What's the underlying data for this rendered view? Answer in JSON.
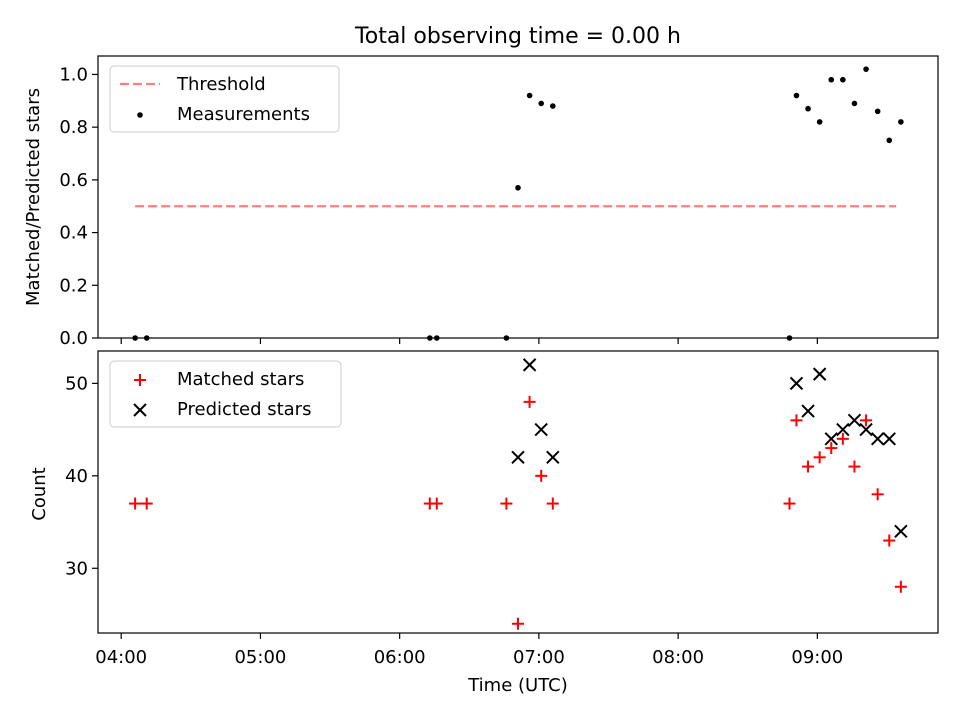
{
  "figure": {
    "title": "Total observing time = 0.00 h"
  },
  "colors": {
    "threshold": "#ff7f7f",
    "measurements": "#000000",
    "matched": "#ff0000",
    "predicted": "#000000"
  },
  "chart_data": [
    {
      "type": "scatter",
      "title": "Total observing time = 0.00 h",
      "xlabel": "",
      "ylabel": "Matched/Predicted stars",
      "xlim": [
        "03:50",
        "09:52"
      ],
      "ylim": [
        0,
        1.07
      ],
      "yticks": [
        0.0,
        0.2,
        0.4,
        0.6,
        0.8,
        1.0
      ],
      "ytick_labels": [
        "0.0",
        "0.2",
        "0.4",
        "0.6",
        "0.8",
        "1.0"
      ],
      "xticks": [
        "04:00",
        "05:00",
        "06:00",
        "07:00",
        "08:00",
        "09:00"
      ],
      "xtick_labels_visible": false,
      "grid": false,
      "legend": {
        "placement": "upper-left",
        "entries": [
          "Threshold",
          "Measurements"
        ]
      },
      "series": [
        {
          "name": "Threshold",
          "style": "dashed-line",
          "points": [
            {
              "x": "04:06",
              "y": 0.5
            },
            {
              "x": "09:34",
              "y": 0.5
            }
          ]
        },
        {
          "name": "Measurements",
          "style": "dot",
          "points": [
            {
              "x": "04:06",
              "y": 0.0
            },
            {
              "x": "04:11",
              "y": 0.0
            },
            {
              "x": "06:13",
              "y": 0.0
            },
            {
              "x": "06:16",
              "y": 0.0
            },
            {
              "x": "06:46",
              "y": 0.0
            },
            {
              "x": "06:51",
              "y": 0.57
            },
            {
              "x": "06:56",
              "y": 0.92
            },
            {
              "x": "07:01",
              "y": 0.89
            },
            {
              "x": "07:06",
              "y": 0.88
            },
            {
              "x": "08:48",
              "y": 0.0
            },
            {
              "x": "08:51",
              "y": 0.92
            },
            {
              "x": "08:56",
              "y": 0.87
            },
            {
              "x": "09:01",
              "y": 0.82
            },
            {
              "x": "09:06",
              "y": 0.98
            },
            {
              "x": "09:11",
              "y": 0.98
            },
            {
              "x": "09:16",
              "y": 0.89
            },
            {
              "x": "09:21",
              "y": 1.02
            },
            {
              "x": "09:26",
              "y": 0.86
            },
            {
              "x": "09:31",
              "y": 0.75
            },
            {
              "x": "09:36",
              "y": 0.82
            }
          ]
        }
      ]
    },
    {
      "type": "scatter",
      "title": "",
      "xlabel": "Time (UTC)",
      "ylabel": "Count",
      "xlim": [
        "03:50",
        "09:52"
      ],
      "ylim": [
        23,
        53.5
      ],
      "yticks": [
        30,
        40,
        50
      ],
      "ytick_labels": [
        "30",
        "40",
        "50"
      ],
      "xticks": [
        "04:00",
        "05:00",
        "06:00",
        "07:00",
        "08:00",
        "09:00"
      ],
      "xtick_labels": [
        "04:00",
        "05:00",
        "06:00",
        "07:00",
        "08:00",
        "09:00"
      ],
      "grid": false,
      "legend": {
        "placement": "upper-left",
        "entries": [
          "Matched stars",
          "Predicted stars"
        ]
      },
      "series": [
        {
          "name": "Matched stars",
          "style": "plus",
          "points": [
            {
              "x": "04:06",
              "y": 37
            },
            {
              "x": "04:11",
              "y": 37
            },
            {
              "x": "06:13",
              "y": 37
            },
            {
              "x": "06:16",
              "y": 37
            },
            {
              "x": "06:46",
              "y": 37
            },
            {
              "x": "06:51",
              "y": 24
            },
            {
              "x": "06:56",
              "y": 48
            },
            {
              "x": "07:01",
              "y": 40
            },
            {
              "x": "07:06",
              "y": 37
            },
            {
              "x": "08:48",
              "y": 37
            },
            {
              "x": "08:51",
              "y": 46
            },
            {
              "x": "08:56",
              "y": 41
            },
            {
              "x": "09:01",
              "y": 42
            },
            {
              "x": "09:06",
              "y": 43
            },
            {
              "x": "09:11",
              "y": 44
            },
            {
              "x": "09:16",
              "y": 41
            },
            {
              "x": "09:21",
              "y": 46
            },
            {
              "x": "09:26",
              "y": 38
            },
            {
              "x": "09:31",
              "y": 33
            },
            {
              "x": "09:36",
              "y": 28
            }
          ]
        },
        {
          "name": "Predicted stars",
          "style": "x",
          "points": [
            {
              "x": "06:51",
              "y": 42
            },
            {
              "x": "06:56",
              "y": 52
            },
            {
              "x": "07:01",
              "y": 45
            },
            {
              "x": "07:06",
              "y": 42
            },
            {
              "x": "08:51",
              "y": 50
            },
            {
              "x": "08:56",
              "y": 47
            },
            {
              "x": "09:01",
              "y": 51
            },
            {
              "x": "09:06",
              "y": 44
            },
            {
              "x": "09:11",
              "y": 45
            },
            {
              "x": "09:16",
              "y": 46
            },
            {
              "x": "09:21",
              "y": 45
            },
            {
              "x": "09:26",
              "y": 44
            },
            {
              "x": "09:31",
              "y": 44
            },
            {
              "x": "09:36",
              "y": 34
            }
          ]
        }
      ]
    }
  ]
}
